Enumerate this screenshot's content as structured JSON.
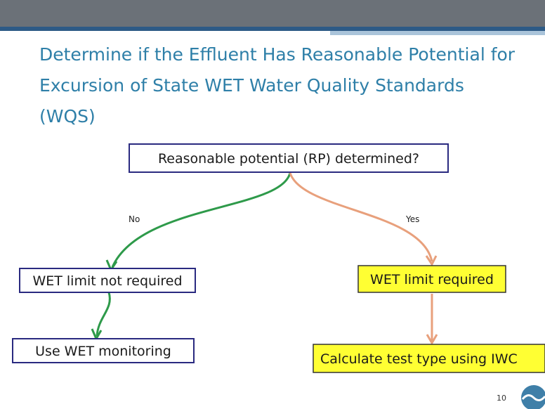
{
  "slide": {
    "title_lines": [
      "Determine if the Effluent Has Reasonable Potential for",
      "Excursion of State WET Water Quality Standards",
      "(WQS)"
    ],
    "page_number": "10"
  },
  "nodes": [
    {
      "label": "Reasonable potential (RP) determined?"
    },
    {
      "label": "WET limit not required"
    },
    {
      "label": "Use WET monitoring"
    },
    {
      "label": "WET limit required"
    },
    {
      "label": "Calculate test type using IWC"
    }
  ],
  "edges": [
    {
      "label": "No"
    },
    {
      "label": "Yes"
    }
  ]
}
